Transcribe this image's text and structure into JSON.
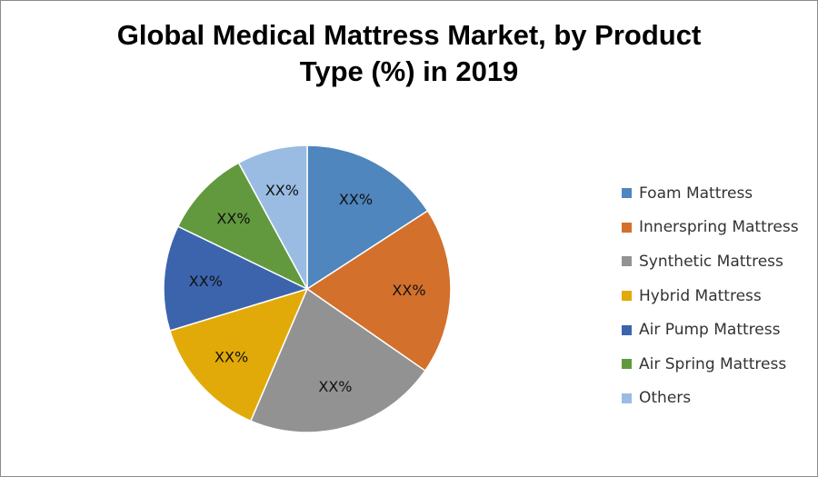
{
  "chart_data": {
    "type": "pie",
    "title_lines": [
      "Global Medical Mattress Market, by Product",
      "Type (%) in 2019"
    ],
    "legend_position": "right",
    "slices": [
      {
        "name": "Foam Mattress",
        "value": 16,
        "label": "XX%",
        "color": "#4e86bd"
      },
      {
        "name": "Innerspring Mattress",
        "value": 19,
        "label": "XX%",
        "color": "#d3702c"
      },
      {
        "name": "Synthetic Mattress",
        "value": 22,
        "label": "XX%",
        "color": "#929292"
      },
      {
        "name": "Hybrid Mattress",
        "value": 14,
        "label": "XX%",
        "color": "#e2aa08"
      },
      {
        "name": "Air Pump Mattress",
        "value": 12,
        "label": "XX%",
        "color": "#3c64ad"
      },
      {
        "name": "Air Spring Mattress",
        "value": 10,
        "label": "XX%",
        "color": "#62993e"
      },
      {
        "name": "Others",
        "value": 8,
        "label": "XX%",
        "color": "#9abce2"
      }
    ]
  }
}
